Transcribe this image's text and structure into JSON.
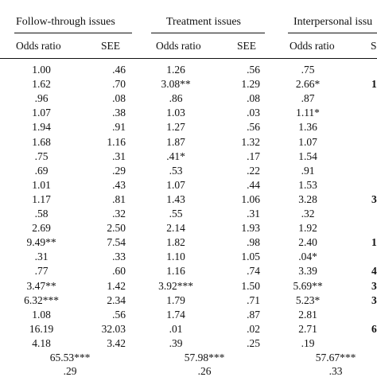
{
  "groups": [
    {
      "label": "Follow-through issues"
    },
    {
      "label": "Treatment issues"
    },
    {
      "label": "Interpersonal issu"
    }
  ],
  "col_headers": {
    "odds_ratio": "Odds ratio",
    "see": "SEE",
    "trunc": "S"
  },
  "rows": [
    [
      "1.00",
      ".46",
      "1.26",
      ".56",
      ".75",
      ""
    ],
    [
      "1.62",
      ".70",
      "3.08**",
      "1.29",
      "2.66*",
      "1"
    ],
    [
      ".96",
      ".08",
      ".86",
      ".08",
      ".87",
      ""
    ],
    [
      "1.07",
      ".38",
      "1.03",
      ".03",
      "1.11*",
      ""
    ],
    [
      "1.94",
      ".91",
      "1.27",
      ".56",
      "1.36",
      ""
    ],
    [
      "1.68",
      "1.16",
      "1.87",
      "1.32",
      "1.07",
      ""
    ],
    [
      ".75",
      ".31",
      ".41*",
      ".17",
      "1.54",
      ""
    ],
    [
      ".69",
      ".29",
      ".53",
      ".22",
      ".91",
      ""
    ],
    [
      "1.01",
      ".43",
      "1.07",
      ".44",
      "1.53",
      ""
    ],
    [
      "1.17",
      ".81",
      "1.43",
      "1.06",
      "3.28",
      "3"
    ],
    [
      ".58",
      ".32",
      ".55",
      ".31",
      ".32",
      ""
    ],
    [
      "2.69",
      "2.50",
      "2.14",
      "1.93",
      "1.92",
      ""
    ],
    [
      "9.49**",
      "7.54",
      "1.82",
      ".98",
      "2.40",
      "1"
    ],
    [
      ".31",
      ".33",
      "1.10",
      "1.05",
      ".04*",
      ""
    ],
    [
      ".77",
      ".60",
      "1.16",
      ".74",
      "3.39",
      "4"
    ],
    [
      "3.47**",
      "1.42",
      "3.92***",
      "1.50",
      "5.69**",
      "3"
    ],
    [
      "6.32***",
      "2.34",
      "1.79",
      ".71",
      "5.23*",
      "3"
    ],
    [
      "1.08",
      ".56",
      "1.74",
      ".87",
      "2.81",
      ""
    ],
    [
      "16.19",
      "32.03",
      ".01",
      ".02",
      "2.71",
      "6"
    ],
    [
      "4.18",
      "3.42",
      ".39",
      ".25",
      ".19",
      ""
    ]
  ],
  "summary": [
    [
      "65.53***",
      "57.98***",
      "57.67***"
    ],
    [
      ".29",
      ".26",
      ".33"
    ]
  ]
}
